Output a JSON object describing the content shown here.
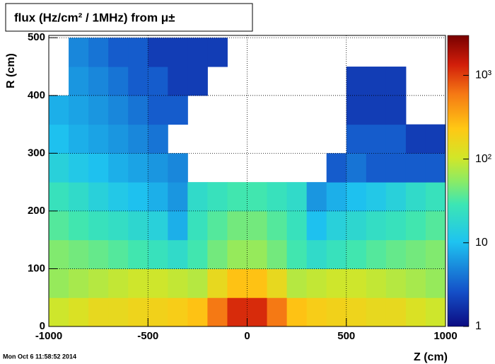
{
  "chart_data": {
    "type": "heatmap",
    "title": "flux (Hz/cm² / 1MHz) from μ±",
    "x_label": "Z (cm)",
    "y_label": "R (cm)",
    "timestamp": "Mon Oct  6 11:58:52 2014",
    "xbins": [
      -1000,
      -900,
      -800,
      -700,
      -600,
      -500,
      -400,
      -300,
      -200,
      -100,
      0,
      100,
      200,
      300,
      400,
      500,
      600,
      700,
      800,
      900,
      1000
    ],
    "ybins": [
      0,
      50,
      100,
      150,
      200,
      250,
      300,
      350,
      400,
      450,
      500
    ],
    "values": [
      [
        100,
        120,
        150,
        150,
        170,
        180,
        200,
        250,
        600,
        1200,
        1200,
        600,
        250,
        200,
        180,
        170,
        150,
        150,
        120,
        100
      ],
      [
        60,
        70,
        80,
        90,
        100,
        100,
        90,
        80,
        150,
        250,
        250,
        150,
        80,
        90,
        100,
        100,
        90,
        80,
        70,
        60
      ],
      [
        50,
        45,
        40,
        35,
        30,
        25,
        20,
        30,
        45,
        60,
        60,
        45,
        30,
        20,
        25,
        30,
        35,
        40,
        45,
        50
      ],
      [
        35,
        30,
        25,
        22,
        18,
        15,
        8,
        25,
        35,
        45,
        45,
        35,
        25,
        10,
        15,
        18,
        22,
        25,
        30,
        35
      ],
      [
        25,
        20,
        15,
        12,
        10,
        8,
        6,
        20,
        25,
        30,
        30,
        25,
        20,
        6,
        8,
        10,
        12,
        15,
        20,
        25
      ],
      [
        15,
        12,
        10,
        8,
        7,
        6,
        5,
        null,
        null,
        null,
        null,
        null,
        null,
        null,
        3,
        4,
        3,
        3,
        3,
        3
      ],
      [
        10,
        8,
        7,
        6,
        5,
        4,
        null,
        null,
        null,
        null,
        null,
        null,
        null,
        null,
        null,
        3,
        3,
        3,
        2,
        2
      ],
      [
        8,
        7,
        6,
        5,
        4,
        3,
        3,
        null,
        null,
        null,
        null,
        null,
        null,
        null,
        null,
        2,
        2,
        2,
        null,
        null
      ],
      [
        null,
        6,
        5,
        4,
        3,
        3,
        2,
        2,
        null,
        null,
        null,
        null,
        null,
        null,
        null,
        2,
        2,
        2,
        null,
        null
      ],
      [
        null,
        5,
        4,
        3,
        3,
        2,
        2,
        2,
        2,
        null,
        null,
        null,
        null,
        null,
        null,
        null,
        null,
        null,
        null,
        null
      ]
    ],
    "xlim": [
      -1000,
      1000
    ],
    "xticks": [
      -1000,
      -500,
      0,
      500,
      1000
    ],
    "ylim": [
      0,
      504
    ],
    "yticks": [
      0,
      100,
      200,
      300,
      400,
      500
    ],
    "zlim": [
      1,
      3000
    ],
    "zlog": true,
    "zticks": [
      1,
      10,
      {
        "value": 100,
        "label": "10²"
      },
      {
        "value": 1000,
        "label": "10³"
      }
    ],
    "grid": true
  }
}
